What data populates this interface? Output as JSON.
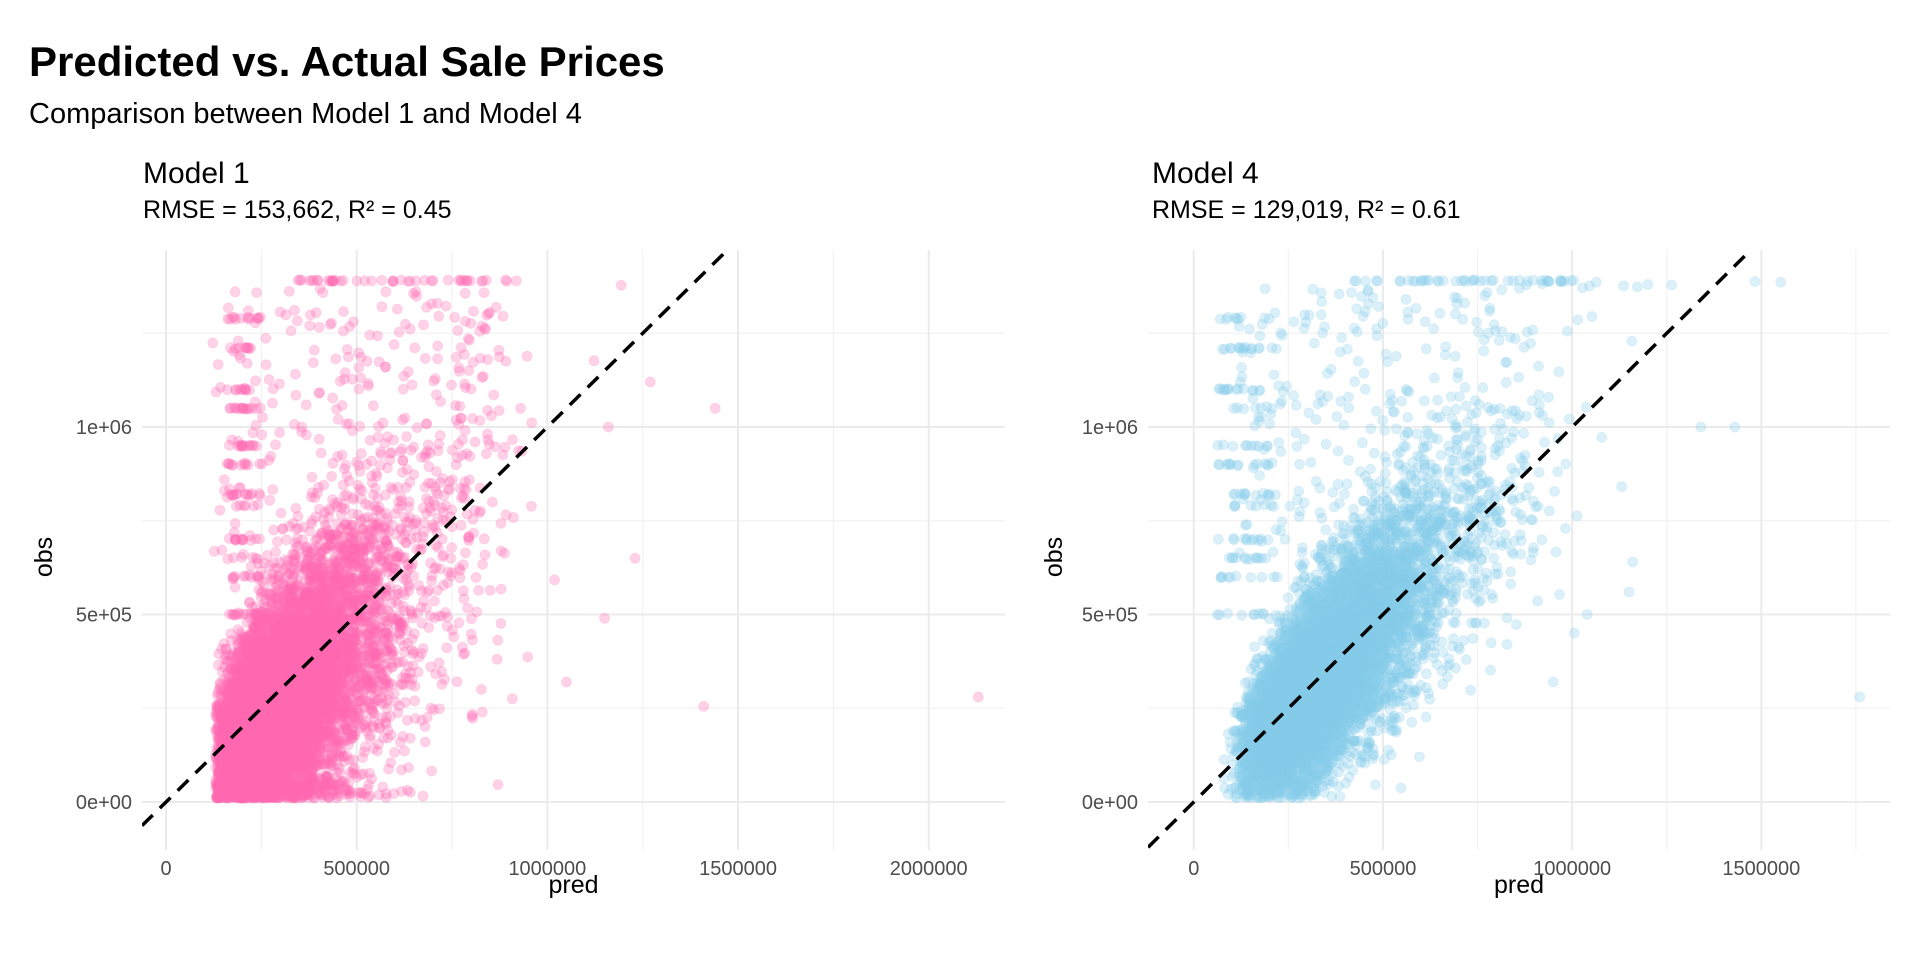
{
  "title": "Predicted vs. Actual Sale Prices",
  "subtitle": "Comparison between Model 1 and Model 4",
  "chart_data": [
    {
      "type": "scatter",
      "title": "Model 1",
      "subtitle": "RMSE = 153,662, R² = 0.45",
      "xlabel": "pred",
      "ylabel": "obs",
      "xlim": [
        -63000,
        2200000
      ],
      "ylim": [
        -128000,
        1472000
      ],
      "x_ticks": [
        0,
        500000,
        1000000,
        1500000,
        2000000
      ],
      "x_tick_labels": [
        "0",
        "500000",
        "1000000",
        "1500000",
        "2000000"
      ],
      "x_minor": [
        250000,
        750000,
        1250000,
        1750000
      ],
      "y_ticks": [
        0,
        500000,
        1000000
      ],
      "y_tick_labels": [
        "0e+00",
        "5e+05",
        "1e+06"
      ],
      "y_minor": [
        250000,
        750000,
        1250000
      ],
      "grid": true,
      "point_color": "#FF69B4",
      "point_alpha": 0.3,
      "reference_line": {
        "type": "y = x",
        "style": "dashed",
        "color": "#000000"
      },
      "distribution": {
        "n_points": 9000,
        "pred_center": 300000,
        "pred_min": 50000,
        "obs_cap": 1390000,
        "slope": 0.9,
        "obs_noise_sd": 160000
      },
      "notable_points": [
        {
          "pred": 1440000,
          "obs": 1050000
        },
        {
          "pred": 1410000,
          "obs": 255000
        },
        {
          "pred": 2130000,
          "obs": 280000
        },
        {
          "pred": 1270000,
          "obs": 1120000
        },
        {
          "pred": 1230000,
          "obs": 650000
        },
        {
          "pred": 1160000,
          "obs": 1000000
        },
        {
          "pred": 1150000,
          "obs": 490000
        },
        {
          "pred": 1050000,
          "obs": 320000
        }
      ]
    },
    {
      "type": "scatter",
      "title": "Model 4",
      "subtitle": "RMSE = 129,019, R² = 0.61",
      "xlabel": "pred",
      "ylabel": "obs",
      "xlim": [
        -121000,
        1840000
      ],
      "ylim": [
        -128000,
        1472000
      ],
      "x_ticks": [
        0,
        500000,
        1000000,
        1500000
      ],
      "x_tick_labels": [
        "0",
        "500000",
        "1000000",
        "1500000"
      ],
      "x_minor": [
        250000,
        750000,
        1250000,
        1750000
      ],
      "y_ticks": [
        0,
        500000,
        1000000
      ],
      "y_tick_labels": [
        "0e+00",
        "5e+05",
        "1e+06"
      ],
      "y_minor": [
        250000,
        750000,
        1250000
      ],
      "grid": true,
      "point_color": "#87CEEB",
      "point_alpha": 0.3,
      "reference_line": {
        "type": "y = x",
        "style": "dashed",
        "color": "#000000"
      },
      "distribution": {
        "n_points": 9000,
        "pred_center": 330000,
        "pred_min": 0,
        "obs_cap": 1390000,
        "slope": 1.0,
        "obs_noise_sd": 120000
      },
      "notable_points": [
        {
          "pred": 1760000,
          "obs": 280000
        },
        {
          "pred": 1430000,
          "obs": 1000000
        },
        {
          "pred": 1340000,
          "obs": 1000000
        },
        {
          "pred": 1200000,
          "obs": 1380000
        },
        {
          "pred": 1160000,
          "obs": 640000
        },
        {
          "pred": 1150000,
          "obs": 560000
        },
        {
          "pred": 1040000,
          "obs": 500000
        },
        {
          "pred": 950000,
          "obs": 320000
        }
      ]
    }
  ]
}
